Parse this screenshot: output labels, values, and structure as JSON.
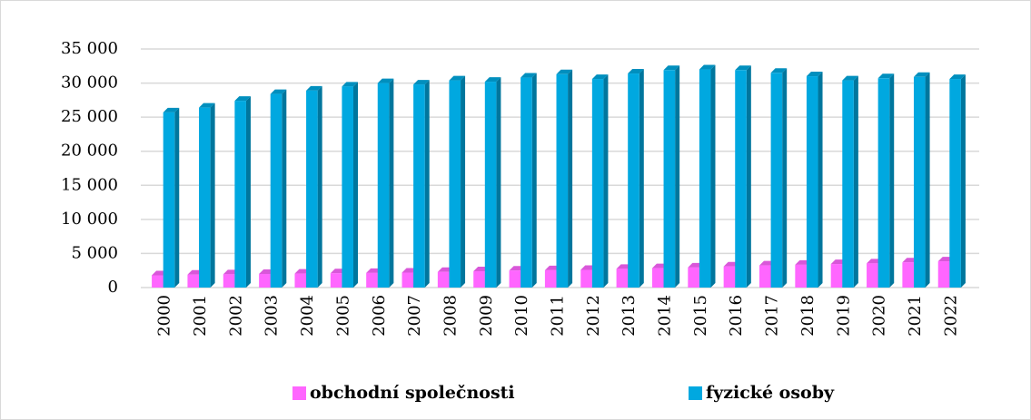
{
  "chart_data": {
    "type": "bar",
    "categories": [
      "2000",
      "2001",
      "2002",
      "2003",
      "2004",
      "2005",
      "2006",
      "2007",
      "2008",
      "2009",
      "2010",
      "2011",
      "2012",
      "2013",
      "2014",
      "2015",
      "2016",
      "2017",
      "2018",
      "2019",
      "2020",
      "2021",
      "2022"
    ],
    "series": [
      {
        "name": "obchodní společnosti",
        "color": "#ff66ff",
        "values": [
          1800,
          1900,
          1950,
          2000,
          2050,
          2100,
          2150,
          2200,
          2300,
          2400,
          2500,
          2550,
          2600,
          2750,
          2850,
          2950,
          3100,
          3250,
          3350,
          3450,
          3550,
          3700,
          3850
        ]
      },
      {
        "name": "fyzické osoby",
        "color": "#00a8e0",
        "values": [
          25700,
          26400,
          27400,
          28400,
          28900,
          29500,
          30000,
          29800,
          30400,
          30200,
          30800,
          31300,
          30600,
          31400,
          31900,
          32000,
          31900,
          31500,
          31000,
          30400,
          30700,
          30900,
          30600
        ]
      }
    ],
    "ylim": [
      0,
      35000
    ],
    "yticks": [
      0,
      {
        "value": 5000,
        "label": "5 000"
      },
      {
        "value": 10000,
        "label": "10 000"
      },
      {
        "value": 15000,
        "label": "15 000"
      },
      {
        "value": 20000,
        "label": "20 000"
      },
      {
        "value": 25000,
        "label": "25 000"
      },
      {
        "value": 30000,
        "label": "30 000"
      },
      {
        "value": 35000,
        "label": "35 000"
      }
    ],
    "grid": true,
    "legend": "bottom"
  }
}
